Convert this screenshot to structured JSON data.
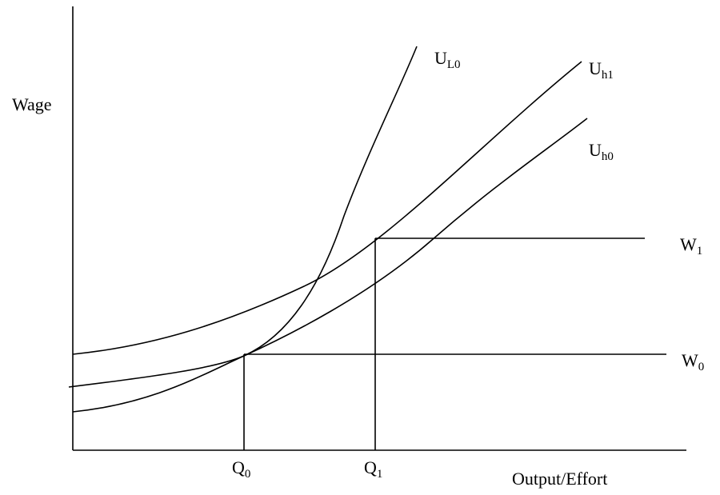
{
  "axes": {
    "y_label": "Wage",
    "x_label": "Output/Effort"
  },
  "curves": [
    {
      "main": "U",
      "sub": "L0"
    },
    {
      "main": "U",
      "sub": "h1"
    },
    {
      "main": "U",
      "sub": "h0"
    }
  ],
  "wage_lines": [
    {
      "main": "W",
      "sub": "1"
    },
    {
      "main": "W",
      "sub": "0"
    }
  ],
  "quantities": [
    {
      "main": "Q",
      "sub": "0"
    },
    {
      "main": "Q",
      "sub": "1"
    }
  ]
}
